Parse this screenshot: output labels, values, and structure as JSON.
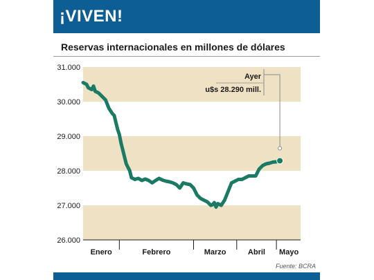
{
  "header": {
    "title": "¡VIVEN!"
  },
  "subtitle": "Reservas internacionales en millones de dólares",
  "source": "Fuente: BCRA",
  "colors": {
    "banner": "#0d5e95",
    "band": "#efe2c4",
    "line": "#1a7a63"
  },
  "chart_data": {
    "type": "line",
    "title": "Reservas internacionales en millones de dólares",
    "xlabel": "",
    "ylabel": "",
    "ylim": [
      26000,
      31000
    ],
    "yticks": [
      26000,
      27000,
      28000,
      29000,
      30000,
      31000
    ],
    "ytick_labels": [
      "26.000",
      "27.000",
      "28.000",
      "29.000",
      "30.000",
      "31.000"
    ],
    "months": [
      "Enero",
      "Febrero",
      "Marzo",
      "Abril",
      "Mayo"
    ],
    "x_range": [
      0,
      126
    ],
    "month_boundaries": [
      21,
      64,
      89,
      112
    ],
    "annotation": {
      "line1": "Ayer",
      "line2": "u$s 28.290 mill.",
      "value": 28290
    },
    "series": [
      {
        "values": [
          [
            0,
            30550
          ],
          [
            2,
            30500
          ],
          [
            3,
            30400
          ],
          [
            5,
            30350
          ],
          [
            6,
            30450
          ],
          [
            7,
            30300
          ],
          [
            9,
            30250
          ],
          [
            11,
            30150
          ],
          [
            13,
            30050
          ],
          [
            15,
            29800
          ],
          [
            17,
            29650
          ],
          [
            18,
            29600
          ],
          [
            19,
            29400
          ],
          [
            20,
            29200
          ],
          [
            21,
            29050
          ],
          [
            22,
            28800
          ],
          [
            23,
            28600
          ],
          [
            24,
            28400
          ],
          [
            25,
            28200
          ],
          [
            27,
            28000
          ],
          [
            28,
            27800
          ],
          [
            30,
            27750
          ],
          [
            32,
            27780
          ],
          [
            34,
            27720
          ],
          [
            36,
            27760
          ],
          [
            38,
            27720
          ],
          [
            40,
            27650
          ],
          [
            42,
            27720
          ],
          [
            44,
            27780
          ],
          [
            46,
            27730
          ],
          [
            48,
            27700
          ],
          [
            50,
            27680
          ],
          [
            52,
            27650
          ],
          [
            54,
            27600
          ],
          [
            56,
            27500
          ],
          [
            58,
            27650
          ],
          [
            60,
            27620
          ],
          [
            62,
            27600
          ],
          [
            64,
            27500
          ],
          [
            66,
            27300
          ],
          [
            68,
            27200
          ],
          [
            70,
            27150
          ],
          [
            72,
            27100
          ],
          [
            74,
            27000
          ],
          [
            75,
            27020
          ],
          [
            76,
            27080
          ],
          [
            77,
            26950
          ],
          [
            78,
            27050
          ],
          [
            80,
            27000
          ],
          [
            82,
            27150
          ],
          [
            84,
            27400
          ],
          [
            86,
            27650
          ],
          [
            88,
            27700
          ],
          [
            90,
            27750
          ],
          [
            92,
            27750
          ],
          [
            94,
            27800
          ],
          [
            96,
            27850
          ],
          [
            98,
            27850
          ],
          [
            100,
            27850
          ],
          [
            102,
            28050
          ],
          [
            104,
            28150
          ],
          [
            106,
            28200
          ],
          [
            108,
            28220
          ],
          [
            110,
            28250
          ],
          [
            112,
            28260
          ],
          [
            114,
            28290
          ]
        ]
      }
    ]
  }
}
